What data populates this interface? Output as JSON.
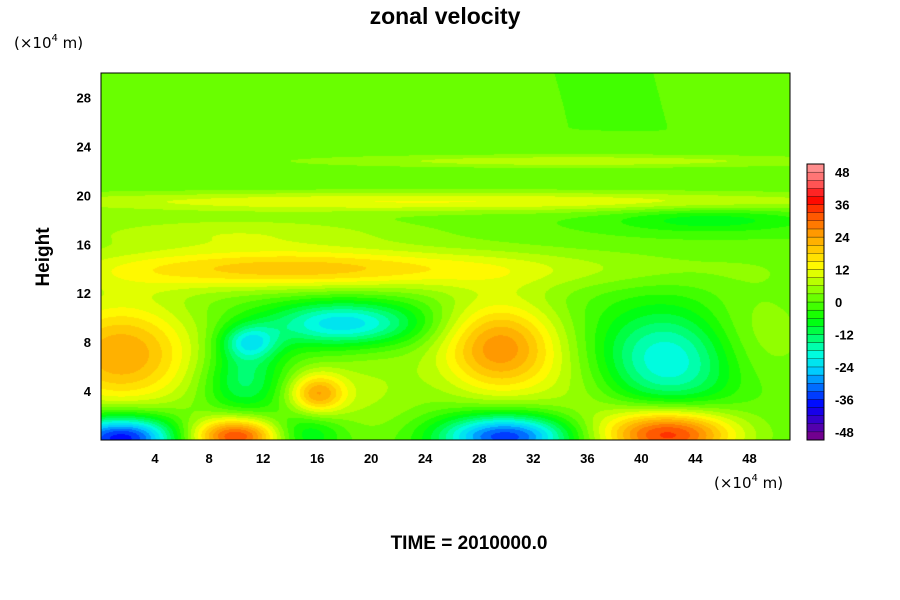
{
  "chart_data": {
    "type": "heatmap",
    "title": "zonal velocity",
    "ylabel": "Height",
    "x_unit_base": "(×10",
    "x_unit_exp": "4",
    "x_unit_end": " m)",
    "y_unit_base": "(×10",
    "y_unit_exp": "4",
    "y_unit_end": " m)",
    "xlim": [
      0,
      51
    ],
    "ylim": [
      0,
      30
    ],
    "x_ticks": [
      4,
      8,
      12,
      16,
      20,
      24,
      28,
      32,
      36,
      40,
      44,
      48
    ],
    "x_tick_labels": [
      "4",
      "8",
      "12",
      "16",
      "20",
      "24",
      "28",
      "32",
      "36",
      "40",
      "44",
      "48"
    ],
    "y_ticks": [
      4,
      8,
      12,
      16,
      20,
      24,
      28
    ],
    "y_tick_labels": [
      "4",
      "8",
      "12",
      "16",
      "20",
      "24",
      "28"
    ],
    "colorbar": {
      "range": [
        -51,
        51
      ],
      "step": 3,
      "tick_values": [
        48,
        36,
        24,
        12,
        0,
        -12,
        -24,
        -36,
        -48
      ],
      "tick_labels": [
        "48",
        "36",
        "24",
        "12",
        "0",
        "-12",
        "-24",
        "-36",
        "-48"
      ]
    },
    "features": [
      {
        "x": 1.5,
        "y": 7.0,
        "sx": 4.0,
        "sy": 3.2,
        "value": 24
      },
      {
        "x": 1.5,
        "y": 0.2,
        "sx": 3.0,
        "sy": 1.3,
        "value": -40
      },
      {
        "x": 10.0,
        "y": 0.3,
        "sx": 2.5,
        "sy": 1.1,
        "value": 34
      },
      {
        "x": 10.5,
        "y": 5.0,
        "sx": 2.0,
        "sy": 2.0,
        "value": -14
      },
      {
        "x": 11.0,
        "y": 8.0,
        "sx": 1.5,
        "sy": 1.0,
        "value": -18
      },
      {
        "x": 16.0,
        "y": 3.8,
        "sx": 1.5,
        "sy": 1.2,
        "value": 22
      },
      {
        "x": 15.0,
        "y": 0.5,
        "sx": 2.0,
        "sy": 1.2,
        "value": -12
      },
      {
        "x": 18.0,
        "y": 9.5,
        "sx": 4.0,
        "sy": 1.3,
        "value": -24
      },
      {
        "x": 20.0,
        "y": 4.0,
        "sx": 3.0,
        "sy": 3.0,
        "value": 6
      },
      {
        "x": 29.5,
        "y": 7.5,
        "sx": 3.2,
        "sy": 2.8,
        "value": 26
      },
      {
        "x": 30.0,
        "y": 0.3,
        "sx": 3.5,
        "sy": 1.3,
        "value": -36
      },
      {
        "x": 42.0,
        "y": 6.5,
        "sx": 4.0,
        "sy": 3.0,
        "value": -22
      },
      {
        "x": 42.0,
        "y": 0.5,
        "sx": 3.5,
        "sy": 1.5,
        "value": 36
      },
      {
        "x": 36.0,
        "y": 4.0,
        "sx": 3.0,
        "sy": 3.0,
        "value": 6
      },
      {
        "x": 48.0,
        "y": 8.0,
        "sx": 3.0,
        "sy": 3.0,
        "value": 8
      },
      {
        "x": 25.0,
        "y": 14.0,
        "sx": 15.0,
        "sy": 1.2,
        "value": 8
      },
      {
        "x": 12.0,
        "y": 14.0,
        "sx": 10.0,
        "sy": 1.2,
        "value": 14
      },
      {
        "x": 25.0,
        "y": 19.5,
        "sx": 25.0,
        "sy": 0.6,
        "value": 12
      },
      {
        "x": 35.0,
        "y": 22.8,
        "sx": 15.0,
        "sy": 0.4,
        "value": 8
      },
      {
        "x": 45.0,
        "y": 18.0,
        "sx": 5.0,
        "sy": 0.7,
        "value": -8
      },
      {
        "x": 10.0,
        "y": 17.0,
        "sx": 10.0,
        "sy": 1.0,
        "value": 8
      }
    ]
  },
  "footer": {
    "time_label": "TIME = 2010000.0"
  },
  "colors": {
    "scale": [
      "#800080",
      "#4000c0",
      "#0000ff",
      "#0066ff",
      "#00ccff",
      "#00ffdd",
      "#00ff66",
      "#00ff00",
      "#55ff00",
      "#aaff00",
      "#ffff00",
      "#ffcc00",
      "#ff9900",
      "#ff5500",
      "#ff0000",
      "#ff6666",
      "#ff9999"
    ]
  }
}
